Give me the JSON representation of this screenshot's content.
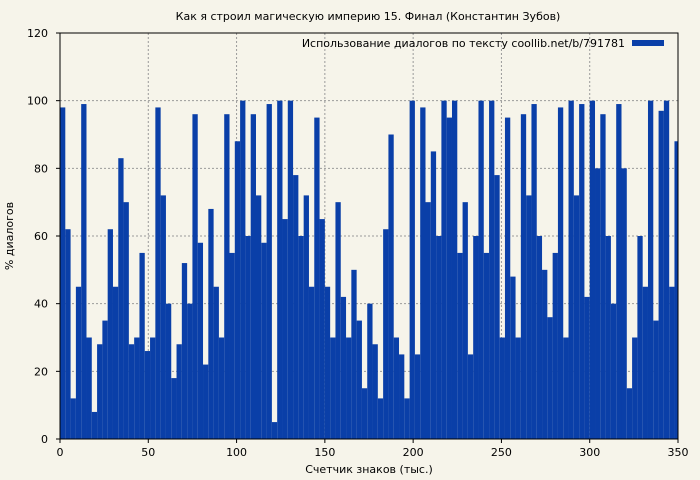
{
  "chart_data": {
    "type": "area",
    "title": "Как я строил магическую империю 15. Финал (Константин Зубов)",
    "xlabel": "Счетчик знаков (тыс.)",
    "ylabel": "% диалогов",
    "xlim": [
      0,
      350
    ],
    "ylim": [
      0,
      120
    ],
    "xticks": [
      "0",
      "50",
      "100",
      "150",
      "200",
      "250",
      "300",
      "350"
    ],
    "yticks": [
      "0",
      "20",
      "40",
      "60",
      "80",
      "100",
      "120"
    ],
    "grid": true,
    "legend_position": "top-right",
    "series": [
      {
        "name": "Использование диалогов по тексту coollib.net/b/791781",
        "color": "#0a3fa8",
        "x": [
          0,
          3,
          6,
          9,
          12,
          15,
          18,
          21,
          24,
          27,
          30,
          33,
          36,
          39,
          42,
          45,
          48,
          51,
          54,
          57,
          60,
          63,
          66,
          69,
          72,
          75,
          78,
          81,
          84,
          87,
          90,
          93,
          96,
          99,
          102,
          105,
          108,
          111,
          114,
          117,
          120,
          123,
          126,
          129,
          132,
          135,
          138,
          141,
          144,
          147,
          150,
          153,
          156,
          159,
          162,
          165,
          168,
          171,
          174,
          177,
          180,
          183,
          186,
          189,
          192,
          195,
          198,
          201,
          204,
          207,
          210,
          213,
          216,
          219,
          222,
          225,
          228,
          231,
          234,
          237,
          240,
          243,
          246,
          249,
          252,
          255,
          258,
          261,
          264,
          267,
          270,
          273,
          276,
          279,
          282,
          285,
          288,
          291,
          294,
          297,
          300,
          303,
          306,
          309,
          312,
          315,
          318,
          321,
          324,
          327,
          330,
          333,
          336,
          339,
          342,
          345,
          348,
          350
        ],
        "values": [
          98,
          62,
          12,
          45,
          99,
          30,
          8,
          28,
          35,
          62,
          45,
          83,
          70,
          28,
          30,
          55,
          26,
          30,
          98,
          72,
          40,
          18,
          28,
          52,
          40,
          96,
          58,
          22,
          68,
          45,
          30,
          96,
          55,
          88,
          100,
          60,
          96,
          72,
          58,
          99,
          5,
          100,
          65,
          100,
          78,
          60,
          72,
          45,
          95,
          65,
          45,
          30,
          70,
          42,
          30,
          50,
          35,
          15,
          40,
          28,
          12,
          62,
          90,
          30,
          25,
          12,
          100,
          25,
          98,
          70,
          85,
          60,
          100,
          95,
          100,
          55,
          70,
          25,
          60,
          100,
          55,
          100,
          78,
          30,
          95,
          48,
          30,
          96,
          72,
          99,
          60,
          50,
          36,
          55,
          98,
          30,
          100,
          72,
          99,
          42,
          100,
          80,
          96,
          60,
          40,
          99,
          80,
          15,
          30,
          60,
          45,
          100,
          35,
          97,
          100,
          45,
          88,
          84
        ]
      }
    ]
  }
}
